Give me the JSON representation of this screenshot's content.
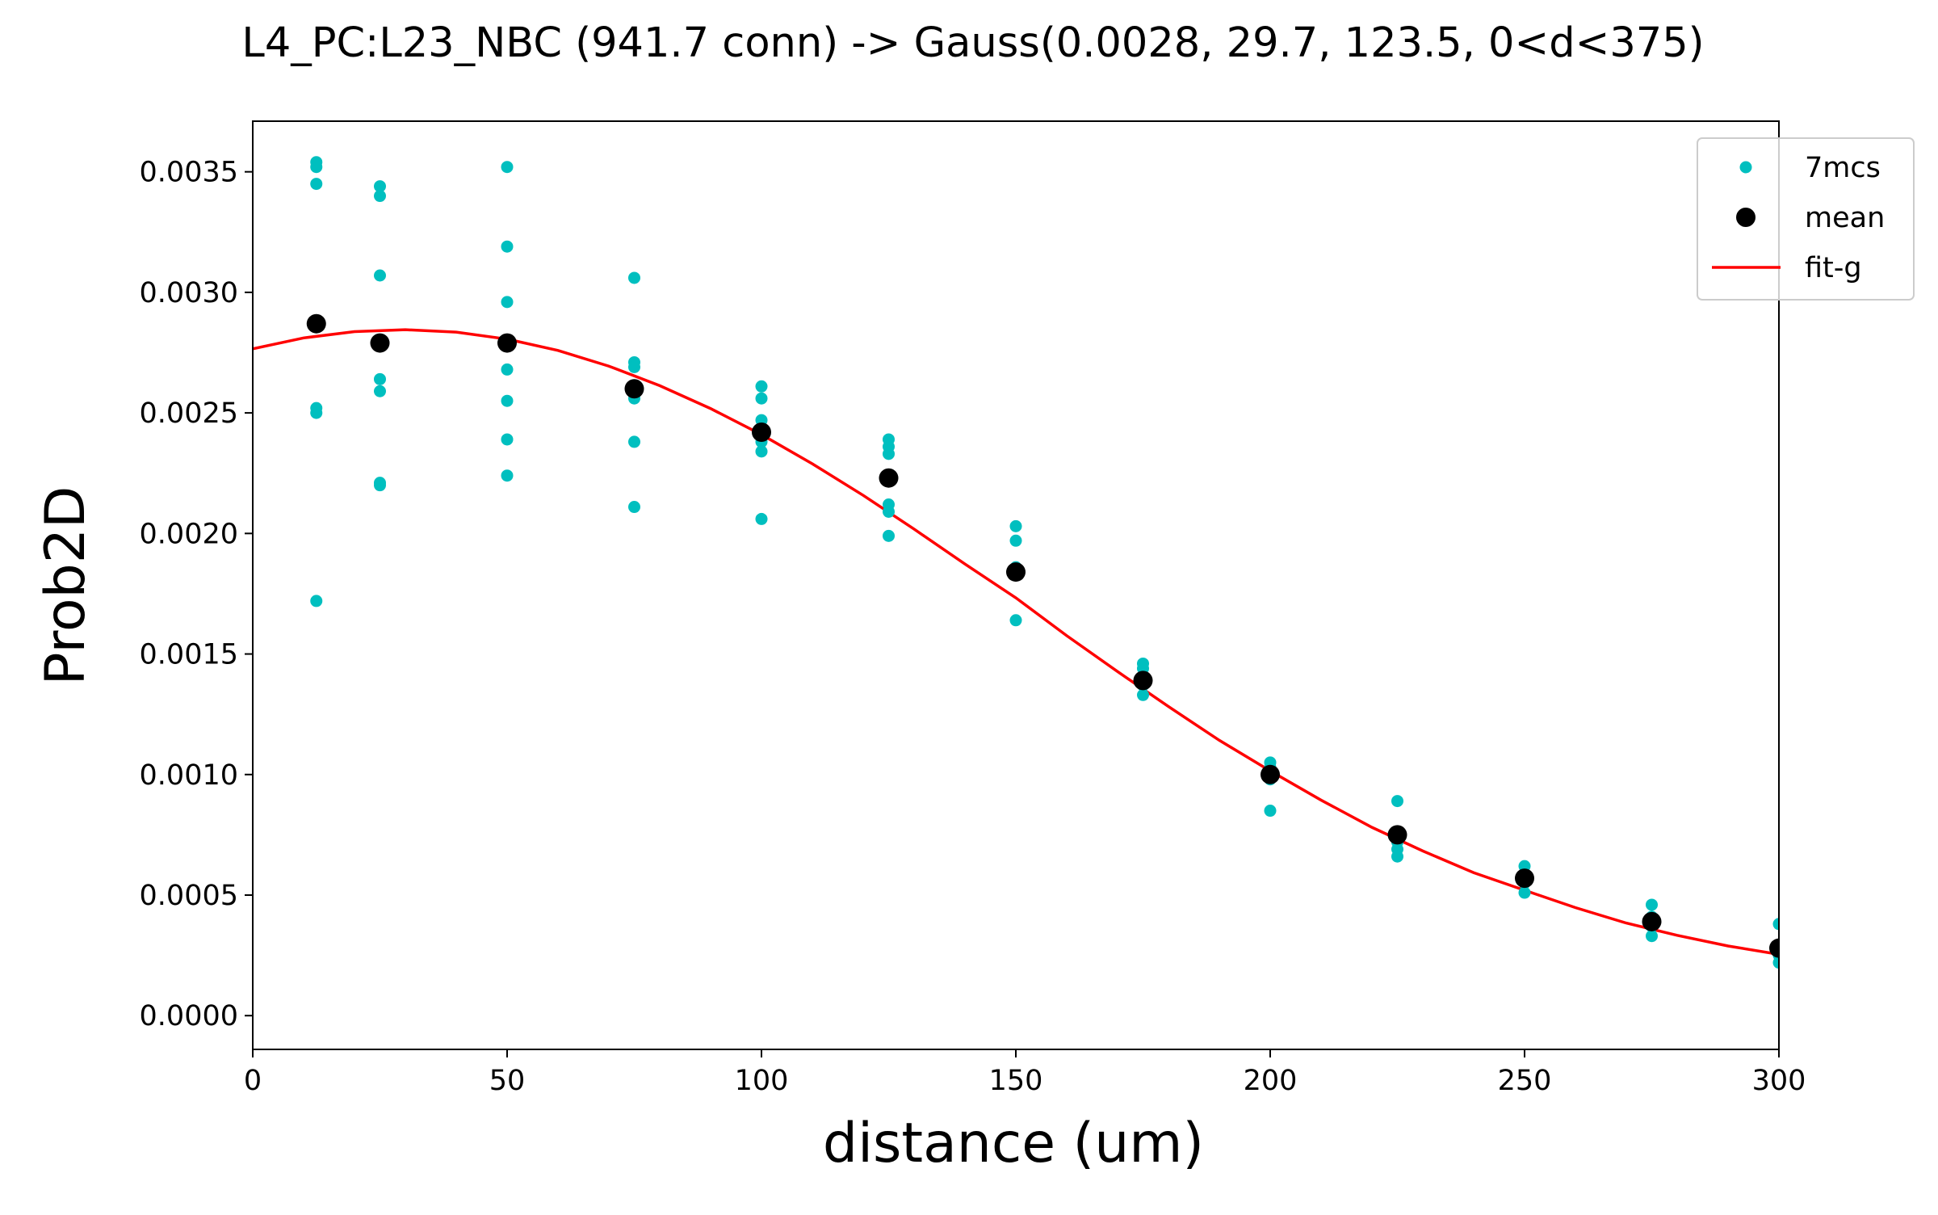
{
  "chart_data": {
    "type": "scatter",
    "title": "L4_PC:L23_NBC (941.7 conn) -> Gauss(0.0028, 29.7, 123.5, 0<d<375)",
    "xlabel": "distance (um)",
    "ylabel": "Prob2D",
    "xlim": [
      0,
      300
    ],
    "ylim": [
      -0.00014,
      0.00371
    ],
    "x_ticks": [
      0,
      50,
      100,
      150,
      200,
      250,
      300
    ],
    "x_tick_labels": [
      "0",
      "50",
      "100",
      "150",
      "200",
      "250",
      "300"
    ],
    "y_ticks": [
      0,
      0.0005,
      0.001,
      0.0015,
      0.002,
      0.0025,
      0.003,
      0.0035
    ],
    "y_tick_labels": [
      "0.0000",
      "0.0005",
      "0.0010",
      "0.0015",
      "0.0020",
      "0.0025",
      "0.0030",
      "0.0035"
    ],
    "grid": false,
    "legend_position": "top-right",
    "legend": [
      {
        "label": "7mcs",
        "kind": "small-dot",
        "color": "#00bfbf"
      },
      {
        "label": "mean",
        "kind": "large-dot",
        "color": "#000000"
      },
      {
        "label": "fit-g",
        "kind": "line",
        "color": "#ff0000"
      }
    ],
    "series": [
      {
        "name": "7mcs",
        "kind": "scatter",
        "color": "#00bfbf",
        "points": [
          [
            12.5,
            0.00354
          ],
          [
            12.5,
            0.00352
          ],
          [
            12.5,
            0.00345
          ],
          [
            12.5,
            0.00252
          ],
          [
            12.5,
            0.0025
          ],
          [
            12.5,
            0.00172
          ],
          [
            25,
            0.00344
          ],
          [
            25,
            0.0034
          ],
          [
            25,
            0.00307
          ],
          [
            25,
            0.00264
          ],
          [
            25,
            0.00259
          ],
          [
            25,
            0.00221
          ],
          [
            25,
            0.0022
          ],
          [
            50,
            0.00352
          ],
          [
            50,
            0.00319
          ],
          [
            50,
            0.00296
          ],
          [
            50,
            0.00268
          ],
          [
            50,
            0.00255
          ],
          [
            50,
            0.00239
          ],
          [
            50,
            0.00224
          ],
          [
            75,
            0.00306
          ],
          [
            75,
            0.00271
          ],
          [
            75,
            0.00269
          ],
          [
            75,
            0.00256
          ],
          [
            75,
            0.00238
          ],
          [
            75,
            0.00211
          ],
          [
            100,
            0.00261
          ],
          [
            100,
            0.00256
          ],
          [
            100,
            0.00247
          ],
          [
            100,
            0.00238
          ],
          [
            100,
            0.00234
          ],
          [
            100,
            0.00206
          ],
          [
            125,
            0.00239
          ],
          [
            125,
            0.00236
          ],
          [
            125,
            0.00233
          ],
          [
            125,
            0.00212
          ],
          [
            125,
            0.00209
          ],
          [
            125,
            0.00199
          ],
          [
            150,
            0.00203
          ],
          [
            150,
            0.00197
          ],
          [
            150,
            0.00186
          ],
          [
            150,
            0.00164
          ],
          [
            175,
            0.00146
          ],
          [
            175,
            0.00144
          ],
          [
            175,
            0.00137
          ],
          [
            175,
            0.00133
          ],
          [
            200,
            0.00105
          ],
          [
            200,
            0.00103
          ],
          [
            200,
            0.00098
          ],
          [
            200,
            0.00085
          ],
          [
            225,
            0.00089
          ],
          [
            225,
            0.00076
          ],
          [
            225,
            0.00072
          ],
          [
            225,
            0.00069
          ],
          [
            225,
            0.00066
          ],
          [
            250,
            0.00062
          ],
          [
            250,
            0.00059
          ],
          [
            250,
            0.00055
          ],
          [
            250,
            0.00051
          ],
          [
            275,
            0.00046
          ],
          [
            275,
            0.00041
          ],
          [
            275,
            0.00037
          ],
          [
            275,
            0.00033
          ],
          [
            300,
            0.00038
          ],
          [
            300,
            0.00029
          ],
          [
            300,
            0.00025
          ],
          [
            300,
            0.00022
          ]
        ]
      },
      {
        "name": "mean",
        "kind": "scatter",
        "color": "#000000",
        "points": [
          [
            12.5,
            0.00287
          ],
          [
            25,
            0.00279
          ],
          [
            50,
            0.00279
          ],
          [
            75,
            0.0026
          ],
          [
            100,
            0.00242
          ],
          [
            125,
            0.00223
          ],
          [
            150,
            0.00184
          ],
          [
            175,
            0.00139
          ],
          [
            200,
            0.001
          ],
          [
            225,
            0.00075
          ],
          [
            250,
            0.00057
          ],
          [
            275,
            0.00039
          ],
          [
            300,
            0.00028
          ]
        ]
      },
      {
        "name": "fit-g",
        "kind": "line",
        "color": "#ff0000",
        "points": [
          [
            0,
            0.002766
          ],
          [
            10,
            0.002811
          ],
          [
            20,
            0.002837
          ],
          [
            30,
            0.002845
          ],
          [
            40,
            0.002835
          ],
          [
            50,
            0.002806
          ],
          [
            60,
            0.002759
          ],
          [
            70,
            0.002694
          ],
          [
            80,
            0.002613
          ],
          [
            90,
            0.002518
          ],
          [
            100,
            0.00241
          ],
          [
            110,
            0.002289
          ],
          [
            120,
            0.002158
          ],
          [
            130,
            0.002018
          ],
          [
            140,
            0.001873
          ],
          [
            150,
            0.001733
          ],
          [
            160,
            0.001576
          ],
          [
            170,
            0.001427
          ],
          [
            180,
            0.001282
          ],
          [
            190,
            0.001142
          ],
          [
            200,
            0.001015
          ],
          [
            210,
            0.000894
          ],
          [
            220,
            0.000781
          ],
          [
            230,
            0.000683
          ],
          [
            240,
            0.000593
          ],
          [
            250,
            0.00052
          ],
          [
            260,
            0.000448
          ],
          [
            270,
            0.000384
          ],
          [
            280,
            0.000333
          ],
          [
            290,
            0.000289
          ],
          [
            300,
            0.000254
          ]
        ]
      }
    ]
  }
}
